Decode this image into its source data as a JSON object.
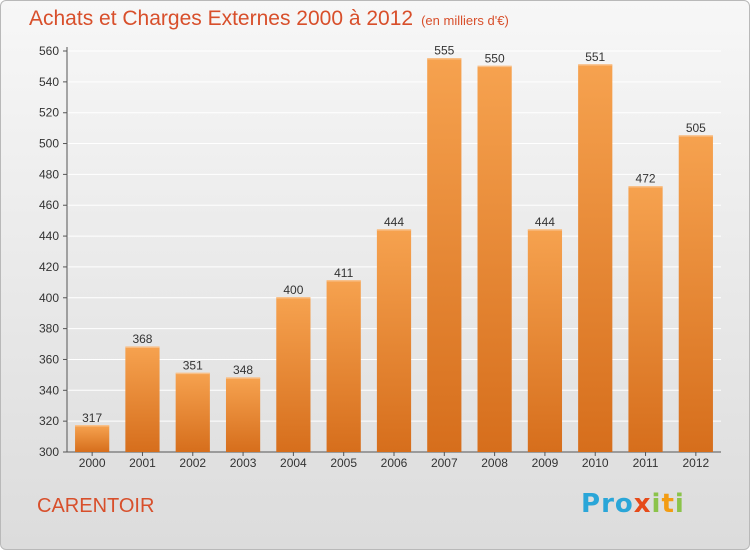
{
  "title": "Achats et Charges Externes 2000 à 2012",
  "unit": "(en milliers d'€)",
  "commune": "CARENTOIR",
  "logo": {
    "letters": [
      "P",
      "r",
      "o",
      "x",
      "i",
      "t",
      "i"
    ],
    "colors": [
      "#2aa6d8",
      "#2aa6d8",
      "#2aa6d8",
      "#e64a19",
      "#8bc34a",
      "#f39c12",
      "#8bc34a"
    ]
  },
  "colors": {
    "bar_top": "#f6a24f",
    "bar_bottom": "#d66e1c",
    "title": "#d84f2b",
    "grid": "#ffffff"
  },
  "chart_data": {
    "type": "bar",
    "title": "Achats et Charges Externes 2000 à 2012",
    "subtitle": "(en milliers d'€)",
    "xlabel": "",
    "ylabel": "",
    "categories": [
      "2000",
      "2001",
      "2002",
      "2003",
      "2004",
      "2005",
      "2006",
      "2007",
      "2008",
      "2009",
      "2010",
      "2011",
      "2012"
    ],
    "values": [
      317,
      368,
      351,
      348,
      400,
      411,
      444,
      555,
      550,
      444,
      551,
      472,
      505
    ],
    "ylim": [
      300,
      560
    ],
    "yticks": [
      300,
      320,
      340,
      360,
      380,
      400,
      420,
      440,
      460,
      480,
      500,
      520,
      540,
      560
    ],
    "grid": true,
    "legend": "none"
  }
}
